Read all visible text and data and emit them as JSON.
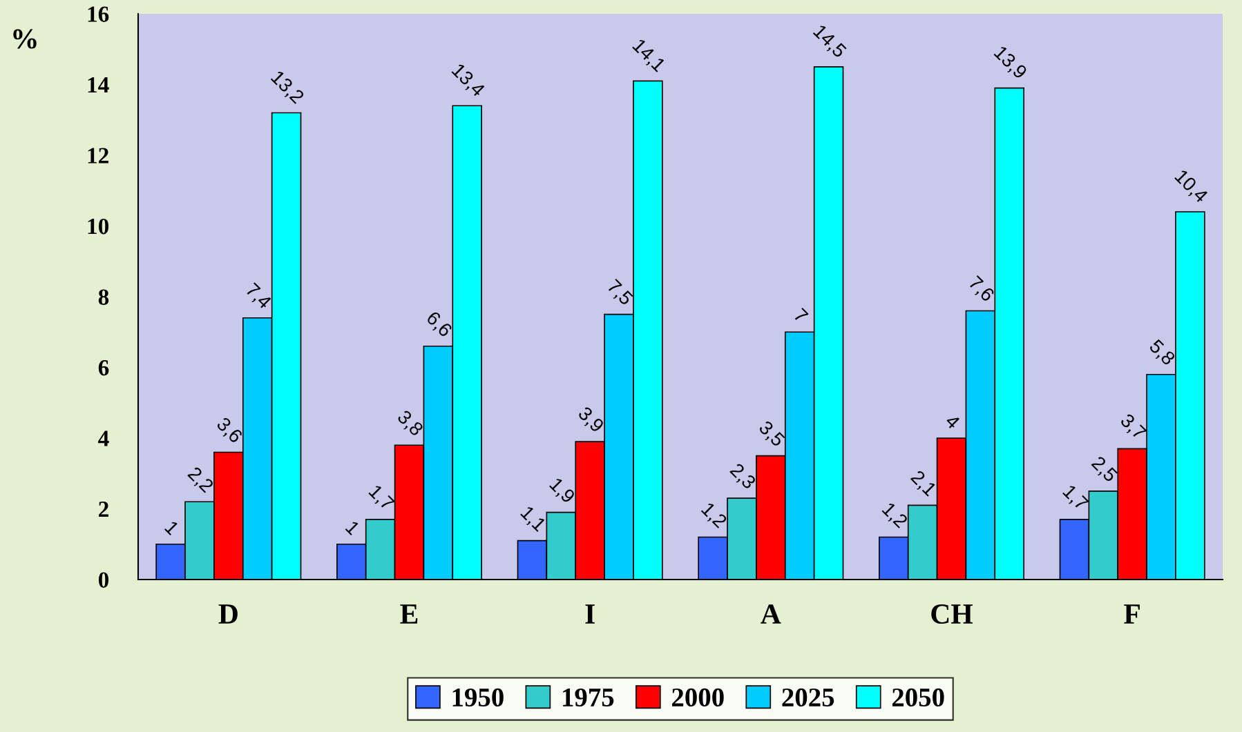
{
  "chart_data": {
    "type": "bar",
    "ylabel": "%",
    "categories": [
      "D",
      "E",
      "I",
      "A",
      "CH",
      "F"
    ],
    "series": [
      {
        "name": "1950",
        "color": "#3366ff",
        "values": [
          1,
          1,
          1.1,
          1.2,
          1.2,
          1.7
        ],
        "value_labels": [
          "1",
          "1",
          "1,1",
          "1,2",
          "1,2",
          "1,7"
        ]
      },
      {
        "name": "1975",
        "color": "#33cccc",
        "values": [
          2.2,
          1.7,
          1.9,
          2.3,
          2.1,
          2.5
        ],
        "value_labels": [
          "2,2",
          "1,7",
          "1,9",
          "2,3",
          "2,1",
          "2,5"
        ]
      },
      {
        "name": "2000",
        "color": "#ff0000",
        "values": [
          3.6,
          3.8,
          3.9,
          3.5,
          4,
          3.7
        ],
        "value_labels": [
          "3,6",
          "3,8",
          "3,9",
          "3,5",
          "4",
          "3,7"
        ]
      },
      {
        "name": "2025",
        "color": "#00ccff",
        "values": [
          7.4,
          6.6,
          7.5,
          7,
          7.6,
          5.8
        ],
        "value_labels": [
          "7,4",
          "6,6",
          "7,5",
          "7",
          "7,6",
          "5,8"
        ]
      },
      {
        "name": "2050",
        "color": "#00ffff",
        "values": [
          13.2,
          13.4,
          14.1,
          14.5,
          13.9,
          10.4
        ],
        "value_labels": [
          "13,2",
          "13,4",
          "14,1",
          "14,5",
          "13,9",
          "10,4"
        ]
      }
    ],
    "ylim": [
      0,
      16
    ],
    "yticks": [
      0,
      2,
      4,
      6,
      8,
      10,
      12,
      14,
      16
    ],
    "grid": false,
    "legend": "bottom"
  }
}
